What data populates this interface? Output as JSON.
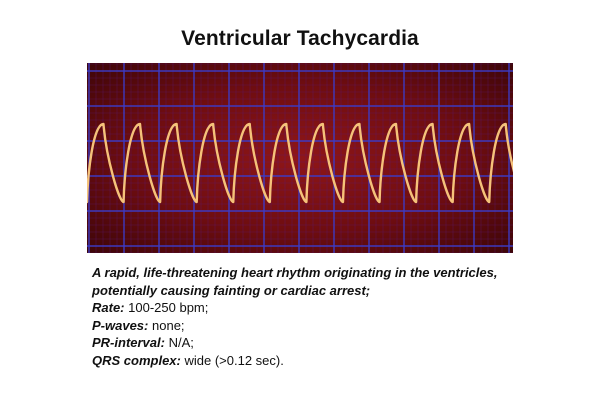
{
  "title": "Ventricular Tachycardia",
  "description": "A rapid, life-threatening heart rhythm originating in the ventricles, potentially causing fainting or cardiac arrest;",
  "stats": [
    {
      "label": "Rate:",
      "value": "100-250 bpm;"
    },
    {
      "label": "P-waves:",
      "value": "none;"
    },
    {
      "label": "PR-interval:",
      "value": "N/A;"
    },
    {
      "label": "QRS complex:",
      "value": "wide (>0.12 sec)."
    }
  ],
  "ecg": {
    "beats": 12,
    "background_color": "#6e0d10",
    "minor_grid_color": "#5a1a7a",
    "major_grid_color": "#3c3cc8",
    "trace_color": "#f5c27a"
  }
}
